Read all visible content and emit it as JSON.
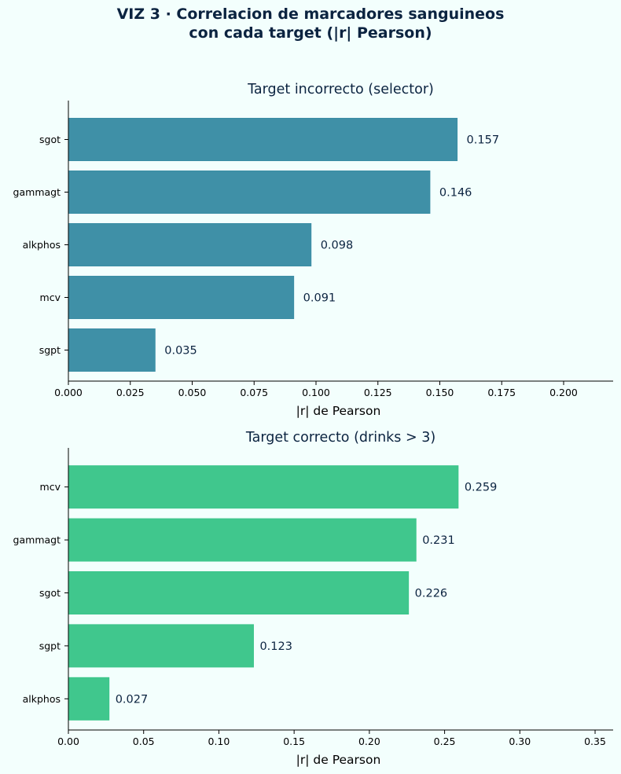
{
  "page": {
    "title_line1": "VIZ 3 · Correlacion de marcadores sanguineos",
    "title_line2": "con cada target (|r| Pearson)"
  },
  "chart_data": [
    {
      "type": "bar",
      "orientation": "horizontal",
      "title": "Target incorrecto (selector)",
      "xlabel": "|r| de Pearson",
      "ylabel": "",
      "categories": [
        "sgot",
        "gammagt",
        "alkphos",
        "mcv",
        "sgpt"
      ],
      "values": [
        0.157,
        0.146,
        0.098,
        0.091,
        0.035
      ],
      "value_labels": [
        "0.157",
        "0.146",
        "0.098",
        "0.091",
        "0.035"
      ],
      "xlim": [
        0,
        0.22
      ],
      "xticks": [
        0,
        0.025,
        0.05,
        0.075,
        0.1,
        0.125,
        0.15,
        0.175,
        0.2
      ],
      "xtick_labels": [
        "0.000",
        "0.025",
        "0.050",
        "0.075",
        "0.100",
        "0.125",
        "0.150",
        "0.175",
        "0.200"
      ],
      "bar_color": "#3b8ea5",
      "grid": false
    },
    {
      "type": "bar",
      "orientation": "horizontal",
      "title": "Target correcto (drinks > 3)",
      "xlabel": "|r| de Pearson",
      "ylabel": "",
      "categories": [
        "mcv",
        "gammagt",
        "sgot",
        "sgpt",
        "alkphos"
      ],
      "values": [
        0.259,
        0.231,
        0.226,
        0.123,
        0.027
      ],
      "value_labels": [
        "0.259",
        "0.231",
        "0.226",
        "0.123",
        "0.027"
      ],
      "xlim": [
        0,
        0.362
      ],
      "xticks": [
        0,
        0.05,
        0.1,
        0.15,
        0.2,
        0.25,
        0.3,
        0.35
      ],
      "xtick_labels": [
        "0.00",
        "0.05",
        "0.10",
        "0.15",
        "0.20",
        "0.25",
        "0.30",
        "0.35"
      ],
      "bar_color": "#3cc68b",
      "grid": false
    }
  ]
}
